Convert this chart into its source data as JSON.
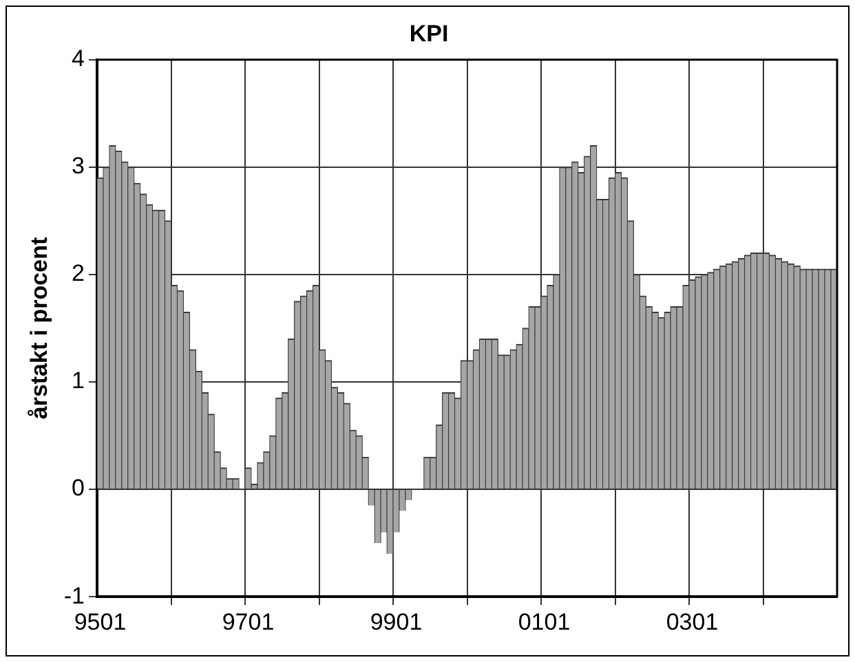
{
  "chart_data": {
    "type": "bar",
    "title": "KPI",
    "ylabel": "årstakt i procent",
    "categories": [
      "9501",
      null,
      null,
      null,
      null,
      null,
      null,
      null,
      null,
      null,
      null,
      null,
      null,
      null,
      null,
      null,
      null,
      null,
      null,
      null,
      null,
      null,
      null,
      null,
      "9701",
      null,
      null,
      null,
      null,
      null,
      null,
      null,
      null,
      null,
      null,
      null,
      null,
      null,
      null,
      null,
      null,
      null,
      null,
      null,
      null,
      null,
      null,
      null,
      "9901",
      null,
      null,
      null,
      null,
      null,
      null,
      null,
      null,
      null,
      null,
      null,
      null,
      null,
      null,
      null,
      null,
      null,
      null,
      null,
      null,
      null,
      null,
      null,
      "0101",
      null,
      null,
      null,
      null,
      null,
      null,
      null,
      null,
      null,
      null,
      null,
      null,
      null,
      null,
      null,
      null,
      null,
      null,
      null,
      null,
      null,
      null,
      null,
      "0301",
      null,
      null,
      null,
      null,
      null,
      null,
      null,
      null,
      null,
      null,
      null,
      null,
      null,
      null,
      null,
      null,
      null,
      null,
      null,
      null,
      null,
      null,
      null
    ],
    "values": [
      2.9,
      3.0,
      3.2,
      3.15,
      3.05,
      3.0,
      2.85,
      2.75,
      2.65,
      2.6,
      2.6,
      2.5,
      1.9,
      1.85,
      1.65,
      1.3,
      1.1,
      0.9,
      0.7,
      0.35,
      0.2,
      0.1,
      0.1,
      0.0,
      0.2,
      0.05,
      0.25,
      0.35,
      0.5,
      0.85,
      0.9,
      1.4,
      1.75,
      1.8,
      1.85,
      1.9,
      1.3,
      1.2,
      0.95,
      0.9,
      0.8,
      0.55,
      0.5,
      0.3,
      -0.15,
      -0.5,
      -0.4,
      -0.6,
      -0.4,
      -0.2,
      -0.1,
      0.0,
      0.0,
      0.3,
      0.3,
      0.6,
      0.9,
      0.9,
      0.85,
      1.2,
      1.2,
      1.3,
      1.4,
      1.4,
      1.4,
      1.25,
      1.25,
      1.3,
      1.35,
      1.5,
      1.7,
      1.7,
      1.8,
      1.9,
      2.0,
      3.0,
      3.0,
      3.05,
      2.95,
      3.1,
      3.2,
      2.7,
      2.7,
      2.9,
      2.95,
      2.9,
      2.5,
      2.0,
      1.8,
      1.7,
      1.65,
      1.6,
      1.65,
      1.7,
      1.7,
      1.9,
      1.95,
      1.98,
      2.0,
      2.02,
      2.05,
      2.08,
      2.1,
      2.12,
      2.15,
      2.18,
      2.2,
      2.2,
      2.2,
      2.18,
      2.15,
      2.12,
      2.1,
      2.08,
      2.05,
      2.05,
      2.05,
      2.05,
      2.05,
      2.05
    ],
    "color": "#a6a6a6",
    "ylim": [
      -1,
      4
    ],
    "yticks": [
      -1,
      0,
      1,
      2,
      3,
      4
    ],
    "grid": true
  }
}
